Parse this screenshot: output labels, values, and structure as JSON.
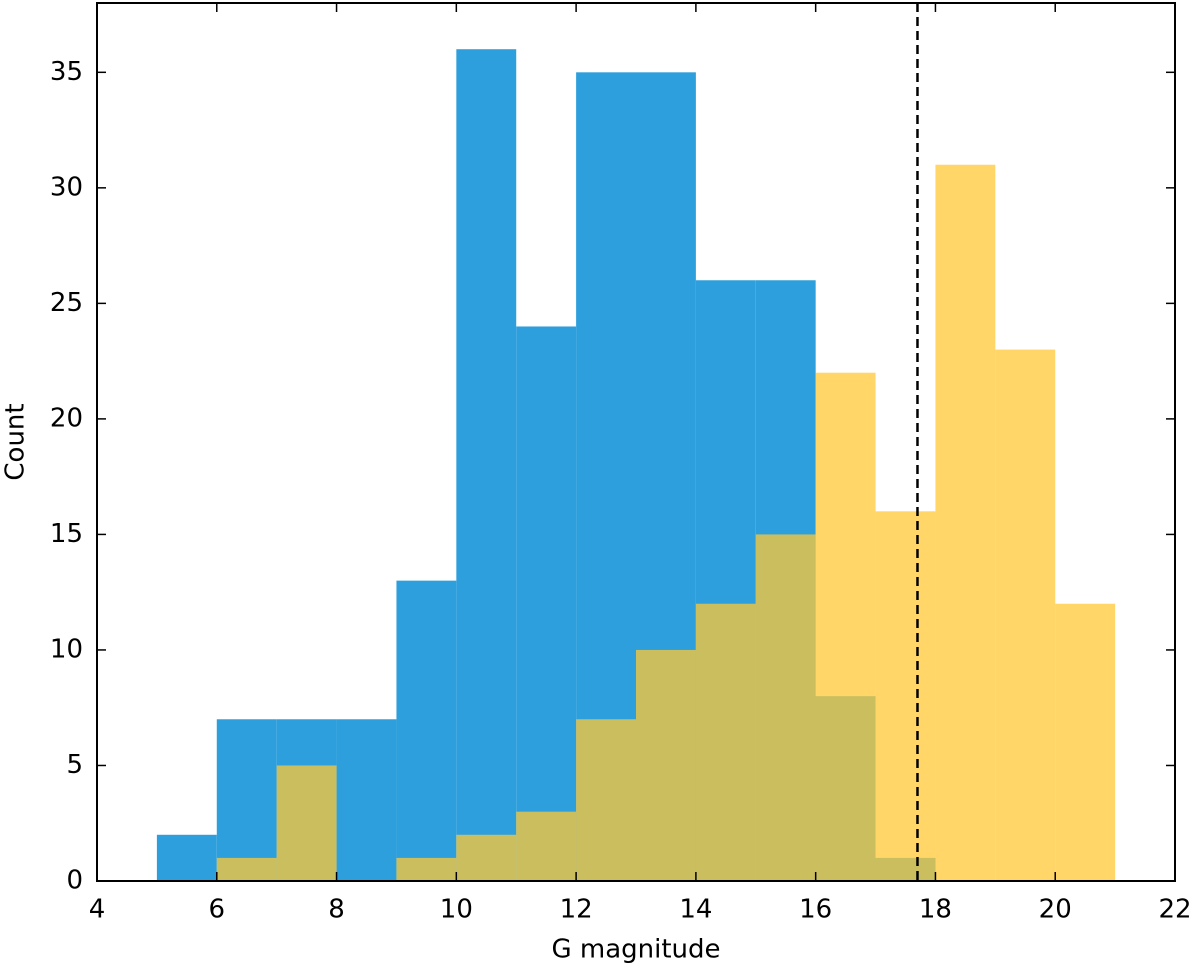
{
  "chart_data": {
    "type": "histogram",
    "xlabel": "G magnitude",
    "ylabel": "Count",
    "xlim": [
      4,
      22
    ],
    "ylim": [
      0,
      38
    ],
    "xticks": [
      4,
      6,
      8,
      10,
      12,
      14,
      16,
      18,
      20,
      22
    ],
    "yticks": [
      0,
      5,
      10,
      15,
      20,
      25,
      30,
      35
    ],
    "series": [
      {
        "color": "#2e9fdd",
        "alpha": 1,
        "bins": [
          5,
          6,
          7,
          8,
          9,
          10,
          11,
          12,
          13,
          14,
          15,
          16,
          17,
          18
        ],
        "values": [
          2,
          7,
          7,
          7,
          13,
          36,
          24,
          35,
          35,
          26,
          26,
          8,
          1
        ]
      },
      {
        "color": "#ffc834",
        "alpha": 0.75,
        "bins": [
          6,
          7,
          8,
          9,
          10,
          11,
          12,
          13,
          14,
          15,
          16,
          17,
          18,
          19,
          20,
          21
        ],
        "values": [
          1,
          5,
          0,
          1,
          2,
          3,
          7,
          10,
          12,
          15,
          22,
          16,
          31,
          23,
          12
        ]
      }
    ],
    "vline": 17.7,
    "vline_color": "#000000"
  }
}
